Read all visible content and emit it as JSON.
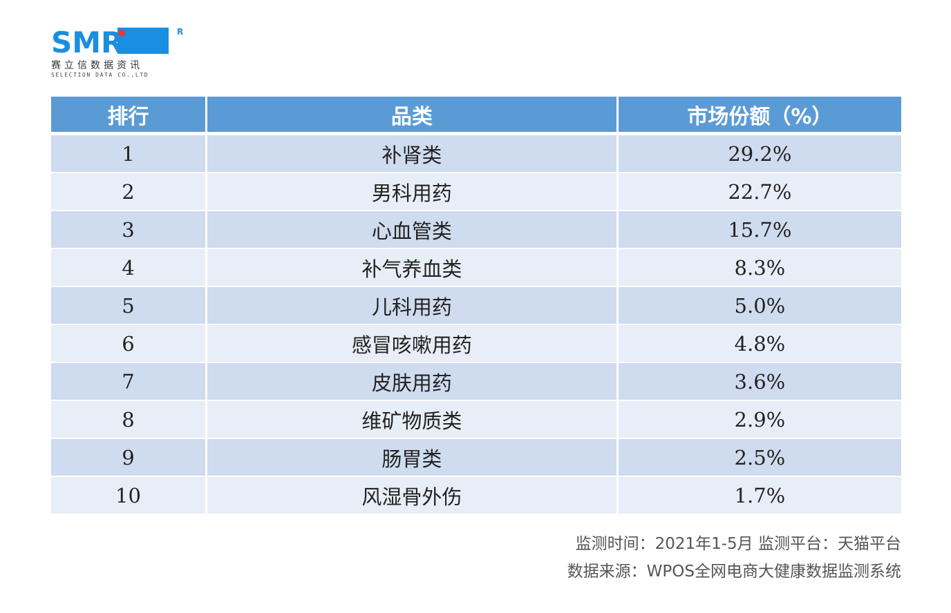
{
  "logo": {
    "brand": "SMR",
    "registered": "R",
    "chinese_name": "赛立信数据资讯",
    "english_name": "SELECTION DATA CO.,LTD",
    "colors": {
      "blue": "#1a8ee0",
      "red": "#e53935"
    }
  },
  "table": {
    "headers": [
      "排行",
      "品类",
      "市场份额（%）"
    ],
    "rows": [
      {
        "rank": "1",
        "category": "补肾类",
        "share": "29.2%"
      },
      {
        "rank": "2",
        "category": "男科用药",
        "share": "22.7%"
      },
      {
        "rank": "3",
        "category": "心血管类",
        "share": "15.7%"
      },
      {
        "rank": "4",
        "category": "补气养血类",
        "share": "8.3%"
      },
      {
        "rank": "5",
        "category": "儿科用药",
        "share": "5.0%"
      },
      {
        "rank": "6",
        "category": "感冒咳嗽用药",
        "share": "4.8%"
      },
      {
        "rank": "7",
        "category": "皮肤用药",
        "share": "3.6%"
      },
      {
        "rank": "8",
        "category": "维矿物质类",
        "share": "2.9%"
      },
      {
        "rank": "9",
        "category": "肠胃类",
        "share": "2.5%"
      },
      {
        "rank": "10",
        "category": "风湿骨外伤",
        "share": "1.7%"
      }
    ],
    "colors": {
      "header": "#5b9bd5",
      "row_odd": "#cfdbee",
      "row_even": "#e8eef7"
    }
  },
  "footer": {
    "line1": "监测时间：2021年1-5月 监测平台：天猫平台",
    "line2": "数据来源：WPOS全网电商大健康数据监测系统"
  }
}
